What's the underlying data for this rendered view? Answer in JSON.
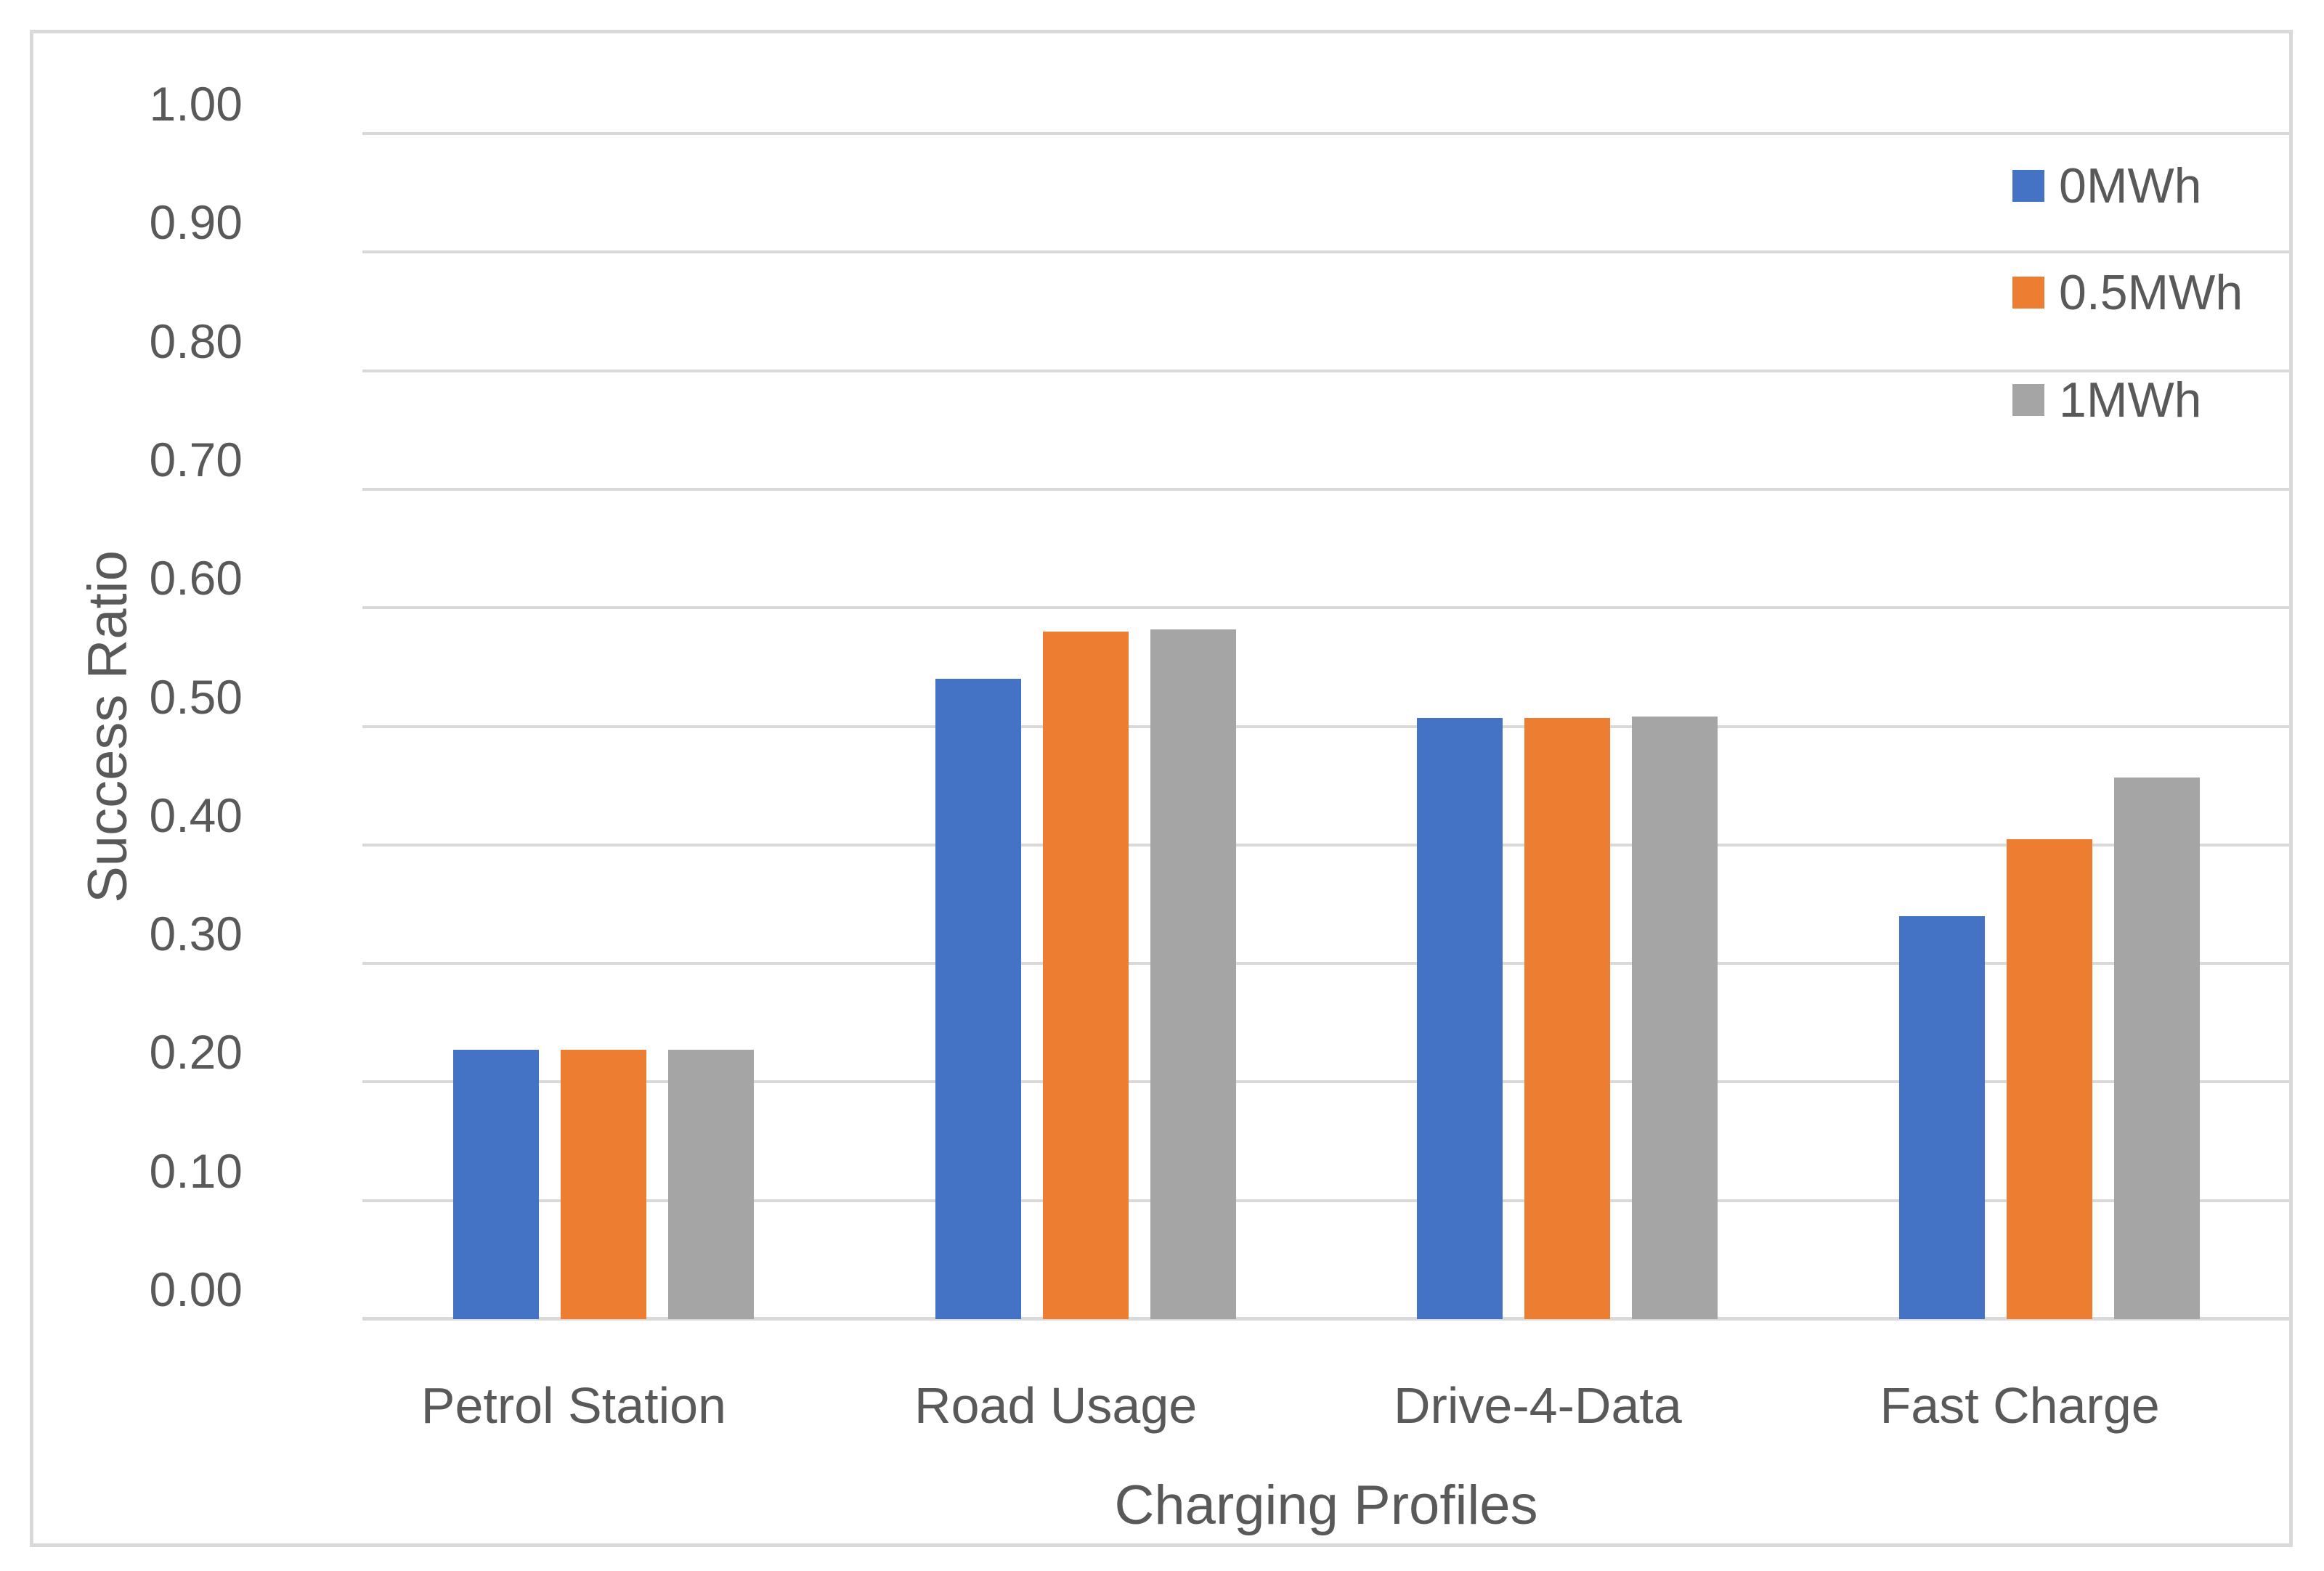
{
  "chart_data": {
    "type": "bar",
    "title": "",
    "xlabel": "Charging Profiles",
    "ylabel": "Success Ratio",
    "categories": [
      "Petrol Station",
      "Road Usage",
      "Drive-4-Data",
      "Fast Charge"
    ],
    "series": [
      {
        "name": "0MWh",
        "color": "#4472C4",
        "values": [
          0.227,
          0.54,
          0.507,
          0.34
        ]
      },
      {
        "name": "0.5MWh",
        "color": "#ED7D31",
        "values": [
          0.227,
          0.58,
          0.507,
          0.405
        ]
      },
      {
        "name": "1MWh",
        "color": "#A5A5A5",
        "values": [
          0.227,
          0.582,
          0.508,
          0.457
        ]
      }
    ],
    "ylim": [
      0.0,
      1.0
    ],
    "ytick_step": 0.1,
    "ytick_labels": [
      "0.00",
      "0.10",
      "0.20",
      "0.30",
      "0.40",
      "0.50",
      "0.60",
      "0.70",
      "0.80",
      "0.90",
      "1.00"
    ],
    "grid": true,
    "legend_position": "top-right"
  },
  "styles": {
    "grid_color": "#D9D9D9",
    "frame_border_color": "#D9D9D9",
    "text_color": "#595959",
    "background_color": "#FFFFFF"
  }
}
